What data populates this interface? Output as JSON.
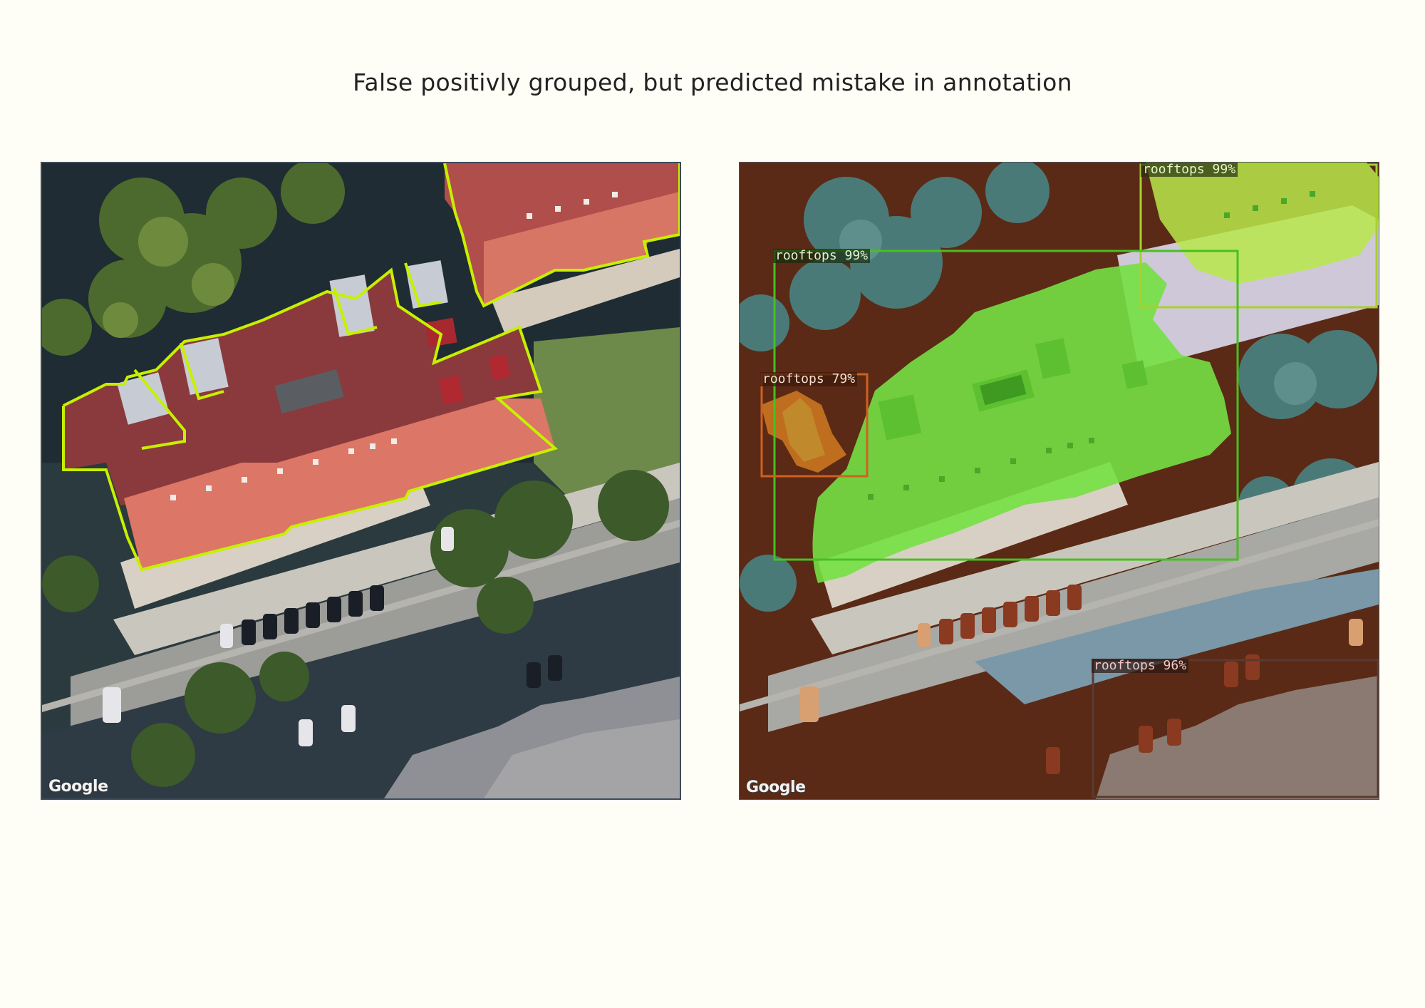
{
  "title": "False positivly grouped, but predicted mistake in annotation",
  "panels": {
    "left": {
      "watermark": "Google",
      "annotation_color": "#c7f000"
    },
    "right": {
      "watermark": "Google",
      "detections": [
        {
          "label": "rooftops 99%",
          "color": "#a8d030"
        },
        {
          "label": "rooftops 99%",
          "color": "#48c020"
        },
        {
          "label": "rooftops 79%",
          "color": "#d06020"
        },
        {
          "label": "rooftops 96%",
          "color": "#5a3a30"
        }
      ]
    }
  }
}
